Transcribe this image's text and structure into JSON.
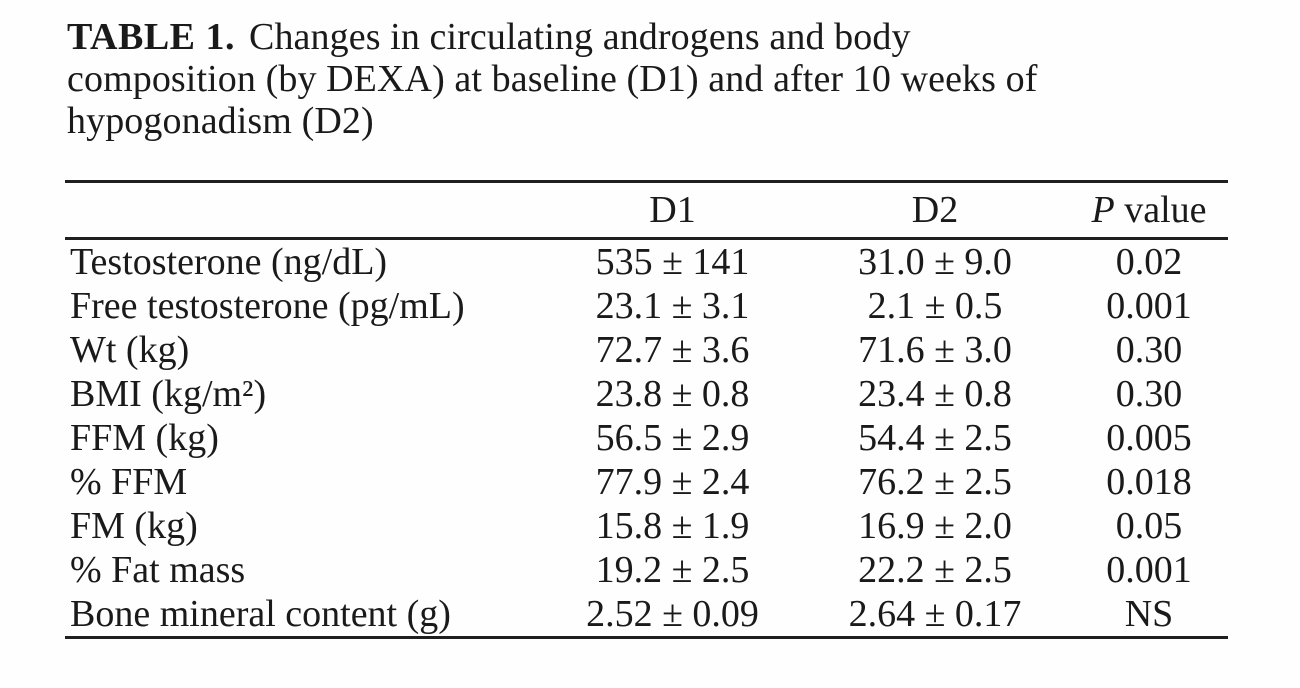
{
  "title": {
    "label": "TABLE 1.",
    "lines": [
      "Changes in circulating androgens and body",
      "composition (by DEXA) at baseline (D1) and after 10 weeks of",
      "hypogonadism (D2)"
    ]
  },
  "table": {
    "header": {
      "d1": "D1",
      "d2": "D2",
      "p_italic": "P",
      "p_rest": " value"
    },
    "rows": [
      {
        "label": "Testosterone (ng/dL)",
        "d1": "535 ± 141",
        "d2": "31.0 ± 9.0",
        "p": "0.02"
      },
      {
        "label": "Free testosterone (pg/mL)",
        "d1": "23.1 ± 3.1",
        "d2": "2.1 ± 0.5",
        "p": "0.001"
      },
      {
        "label": "Wt (kg)",
        "d1": "72.7 ± 3.6",
        "d2": "71.6 ± 3.0",
        "p": "0.30"
      },
      {
        "label": "BMI (kg/m²)",
        "d1": "23.8 ± 0.8",
        "d2": "23.4 ± 0.8",
        "p": "0.30"
      },
      {
        "label": "FFM (kg)",
        "d1": "56.5 ± 2.9",
        "d2": "54.4 ± 2.5",
        "p": "0.005"
      },
      {
        "label": "% FFM",
        "d1": "77.9 ± 2.4",
        "d2": "76.2 ± 2.5",
        "p": "0.018"
      },
      {
        "label": "FM (kg)",
        "d1": "15.8 ± 1.9",
        "d2": "16.9 ± 2.0",
        "p": "0.05"
      },
      {
        "label": "% Fat mass",
        "d1": "19.2 ± 2.5",
        "d2": "22.2 ± 2.5",
        "p": "0.001"
      },
      {
        "label": "Bone mineral content (g)",
        "d1": "2.52 ± 0.09",
        "d2": "2.64 ± 0.17",
        "p": "NS"
      }
    ]
  }
}
